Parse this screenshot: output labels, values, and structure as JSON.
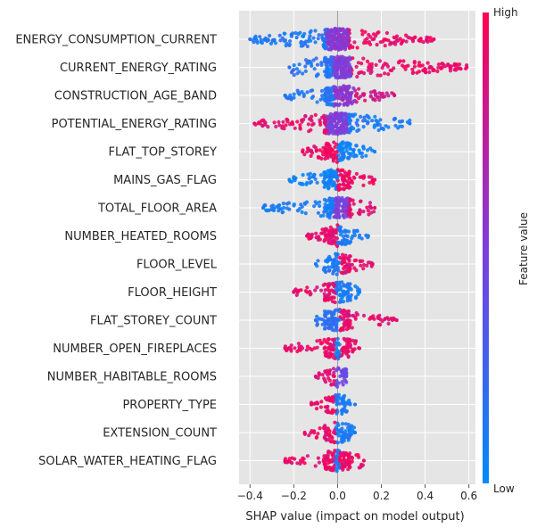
{
  "chart_data": {
    "type": "beeswarm",
    "xlabel": "SHAP value (impact on model output)",
    "xlim": [
      -0.45,
      0.63
    ],
    "xticks": [
      -0.4,
      -0.2,
      0.0,
      0.2,
      0.4,
      0.6
    ],
    "xtick_labels": [
      "−0.4",
      "−0.2",
      "0.0",
      "0.2",
      "0.4",
      "0.6"
    ],
    "grid": true,
    "colorbar": {
      "label": "Feature value",
      "high_label": "High",
      "low_label": "Low",
      "low_color": "#1e88e5",
      "high_color": "#ff0d57"
    },
    "features": [
      {
        "name": "ENERGY_CONSUMPTION_CURRENT",
        "min": -0.4,
        "max": 0.44,
        "segments": [
          {
            "from": -0.4,
            "to": -0.05,
            "value": 0.12
          },
          {
            "from": -0.05,
            "to": 0.05,
            "value": 0.55
          },
          {
            "from": 0.05,
            "to": 0.44,
            "value": 0.92
          }
        ]
      },
      {
        "name": "CURRENT_ENERGY_RATING",
        "min": -0.22,
        "max": 0.59,
        "segments": [
          {
            "from": -0.22,
            "to": -0.02,
            "value": 0.15
          },
          {
            "from": -0.02,
            "to": 0.06,
            "value": 0.5
          },
          {
            "from": 0.06,
            "to": 0.59,
            "value": 0.92
          }
        ]
      },
      {
        "name": "CONSTRUCTION_AGE_BAND",
        "min": -0.24,
        "max": 0.26,
        "segments": [
          {
            "from": -0.24,
            "to": -0.02,
            "value": 0.12
          },
          {
            "from": -0.02,
            "to": 0.08,
            "value": 0.55
          },
          {
            "from": 0.08,
            "to": 0.26,
            "value": 0.82
          }
        ]
      },
      {
        "name": "POTENTIAL_ENERGY_RATING",
        "min": -0.38,
        "max": 0.33,
        "segments": [
          {
            "from": -0.38,
            "to": -0.05,
            "value": 0.9
          },
          {
            "from": -0.05,
            "to": 0.05,
            "value": 0.5
          },
          {
            "from": 0.05,
            "to": 0.33,
            "value": 0.1
          }
        ]
      },
      {
        "name": "FLAT_TOP_STOREY",
        "min": -0.16,
        "max": 0.17,
        "segments": [
          {
            "from": -0.16,
            "to": 0.0,
            "value": 0.95
          },
          {
            "from": 0.0,
            "to": 0.17,
            "value": 0.05
          }
        ]
      },
      {
        "name": "MAINS_GAS_FLAG",
        "min": -0.22,
        "max": 0.17,
        "segments": [
          {
            "from": -0.22,
            "to": 0.0,
            "value": 0.05
          },
          {
            "from": 0.0,
            "to": 0.17,
            "value": 0.95
          }
        ]
      },
      {
        "name": "TOTAL_FLOOR_AREA",
        "min": -0.34,
        "max": 0.17,
        "segments": [
          {
            "from": -0.34,
            "to": -0.02,
            "value": 0.1
          },
          {
            "from": -0.02,
            "to": 0.05,
            "value": 0.5
          },
          {
            "from": 0.05,
            "to": 0.17,
            "value": 0.88
          }
        ]
      },
      {
        "name": "NUMBER_HEATED_ROOMS",
        "min": -0.14,
        "max": 0.14,
        "segments": [
          {
            "from": -0.14,
            "to": 0.0,
            "value": 0.9
          },
          {
            "from": 0.0,
            "to": 0.14,
            "value": 0.1
          }
        ]
      },
      {
        "name": "FLOOR_LEVEL",
        "min": -0.1,
        "max": 0.16,
        "segments": [
          {
            "from": -0.1,
            "to": 0.01,
            "value": 0.1
          },
          {
            "from": 0.01,
            "to": 0.16,
            "value": 0.9
          }
        ]
      },
      {
        "name": "FLOOR_HEIGHT",
        "min": -0.2,
        "max": 0.1,
        "segments": [
          {
            "from": -0.2,
            "to": -0.01,
            "value": 0.9
          },
          {
            "from": -0.01,
            "to": 0.1,
            "value": 0.1
          }
        ]
      },
      {
        "name": "FLAT_STOREY_COUNT",
        "min": -0.1,
        "max": 0.27,
        "segments": [
          {
            "from": -0.1,
            "to": 0.01,
            "value": 0.15
          },
          {
            "from": 0.01,
            "to": 0.27,
            "value": 0.9
          }
        ]
      },
      {
        "name": "NUMBER_OPEN_FIREPLACES",
        "min": -0.24,
        "max": 0.1,
        "segments": [
          {
            "from": -0.24,
            "to": -0.01,
            "value": 0.92
          },
          {
            "from": -0.01,
            "to": 0.01,
            "value": 0.1
          },
          {
            "from": 0.01,
            "to": 0.1,
            "value": 0.92
          }
        ]
      },
      {
        "name": "NUMBER_HABITABLE_ROOMS",
        "min": -0.1,
        "max": 0.04,
        "segments": [
          {
            "from": -0.1,
            "to": -0.01,
            "value": 0.88
          },
          {
            "from": -0.01,
            "to": 0.04,
            "value": 0.4
          }
        ]
      },
      {
        "name": "PROPERTY_TYPE",
        "min": -0.12,
        "max": 0.08,
        "segments": [
          {
            "from": -0.12,
            "to": -0.01,
            "value": 0.92
          },
          {
            "from": -0.01,
            "to": 0.08,
            "value": 0.1
          }
        ]
      },
      {
        "name": "EXTENSION_COUNT",
        "min": -0.15,
        "max": 0.08,
        "segments": [
          {
            "from": -0.15,
            "to": -0.01,
            "value": 0.92
          },
          {
            "from": -0.01,
            "to": 0.08,
            "value": 0.1
          }
        ]
      },
      {
        "name": "SOLAR_WATER_HEATING_FLAG",
        "min": -0.24,
        "max": 0.12,
        "segments": [
          {
            "from": -0.24,
            "to": -0.01,
            "value": 0.92
          },
          {
            "from": -0.01,
            "to": 0.01,
            "value": 0.1
          },
          {
            "from": 0.01,
            "to": 0.12,
            "value": 0.92
          }
        ]
      }
    ]
  }
}
